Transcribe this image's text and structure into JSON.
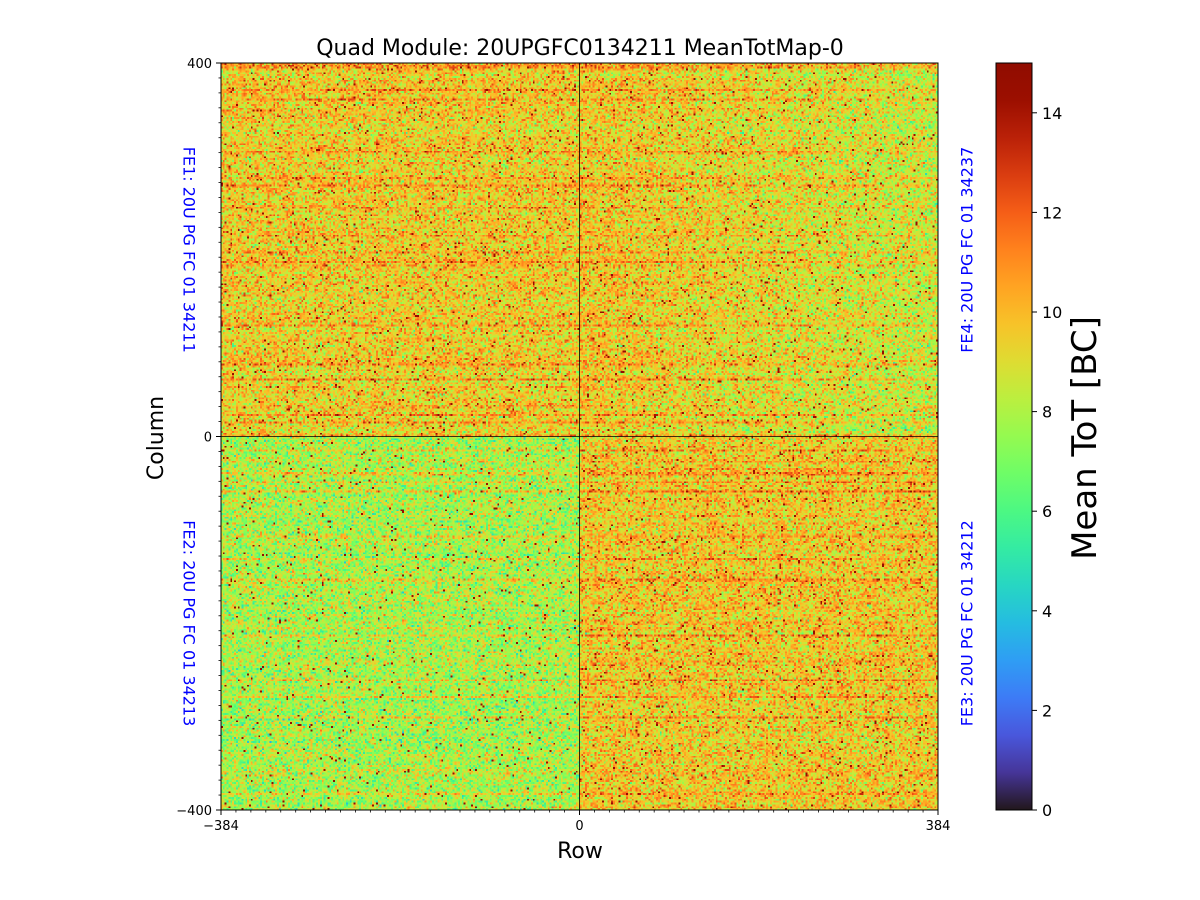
{
  "chart_data": {
    "type": "heatmap",
    "title": "Quad Module: 20UPGFC0134211 MeanTotMap-0",
    "xlabel": "Row",
    "ylabel": "Column",
    "xlim": [
      -384,
      384
    ],
    "ylim": [
      -400,
      400
    ],
    "x_ticks": [
      "−384",
      "0",
      "384"
    ],
    "y_ticks": [
      "400",
      "0",
      "−400"
    ],
    "colorbar": {
      "label": "Mean ToT [BC]",
      "range": [
        0,
        15
      ],
      "ticks": [
        "0",
        "2",
        "4",
        "6",
        "8",
        "10",
        "12",
        "14"
      ],
      "colormap": "turbo"
    },
    "quadrants": [
      {
        "label": "FE1: 20U PG FC 01 34211",
        "position": "top-left",
        "approx_mean_tot": 9.5
      },
      {
        "label": "FE4: 20U PG FC 01 34237",
        "position": "top-right",
        "approx_mean_tot": 9.3
      },
      {
        "label": "FE2: 20U PG FC 01 34213",
        "position": "bottom-left",
        "approx_mean_tot": 7.9
      },
      {
        "label": "FE3: 20U PG FC 01 34212",
        "position": "bottom-right",
        "approx_mean_tot": 9.6
      }
    ],
    "grid": false,
    "fe_label_color": "#0000ff"
  }
}
